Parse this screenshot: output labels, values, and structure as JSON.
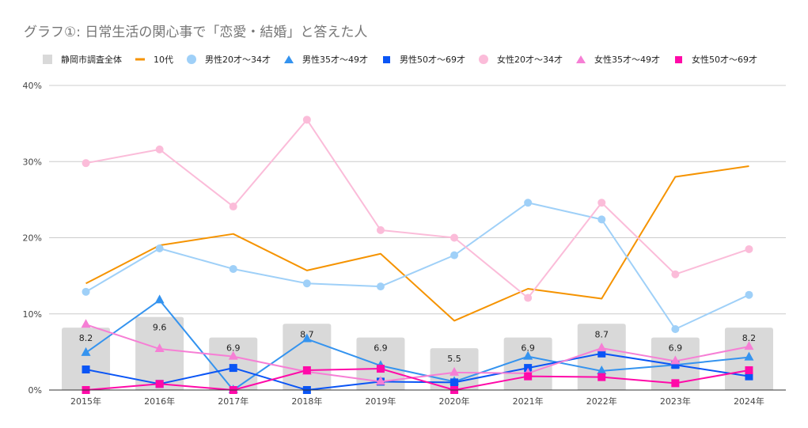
{
  "chart_data": {
    "type": "bar+line",
    "title": "グラフ①: 日常生活の関心事で「恋愛・結婚」と答えた人",
    "xlabel": "",
    "ylabel": "",
    "ylim": [
      0,
      40
    ],
    "yticks": [
      0,
      10,
      20,
      30,
      40
    ],
    "ytick_labels": [
      "0%",
      "10%",
      "20%",
      "30%",
      "40%"
    ],
    "grid": true,
    "legend_position": "top",
    "categories": [
      "2015年",
      "2016年",
      "2017年",
      "2018年",
      "2019年",
      "2020年",
      "2021年",
      "2022年",
      "2023年",
      "2024年"
    ],
    "bar_series": {
      "name": "静岡市調査全体",
      "color": "#d9d9d9",
      "values": [
        8.2,
        9.6,
        6.9,
        8.7,
        6.9,
        5.5,
        6.9,
        8.7,
        6.9,
        8.2
      ],
      "labels": [
        "8.2",
        "9.6",
        "6.9",
        "8.7",
        "6.9",
        "5.5",
        "6.9",
        "8.7",
        "6.9",
        "8.2"
      ]
    },
    "series": [
      {
        "name": "10代",
        "color": "#f59300",
        "marker": "none",
        "values": [
          14.0,
          19.0,
          20.5,
          15.7,
          17.9,
          9.1,
          13.3,
          12.0,
          28.0,
          29.4
        ]
      },
      {
        "name": "男性20才～34才",
        "color": "#9fd0f8",
        "marker": "circle",
        "values": [
          12.9,
          18.6,
          15.9,
          14.0,
          13.6,
          17.7,
          24.6,
          22.4,
          8.0,
          12.5
        ]
      },
      {
        "name": "男性35才～49才",
        "color": "#3493ef",
        "marker": "triangle",
        "values": [
          4.9,
          11.8,
          0.0,
          6.7,
          3.2,
          1.1,
          4.4,
          2.5,
          3.3,
          4.3
        ]
      },
      {
        "name": "男性50才～69才",
        "color": "#0a55f5",
        "marker": "square",
        "values": [
          2.7,
          0.8,
          2.9,
          0.0,
          1.1,
          1.0,
          2.9,
          4.8,
          3.3,
          1.8
        ]
      },
      {
        "name": "女性20才～34才",
        "color": "#fbbcd9",
        "marker": "circle",
        "values": [
          29.8,
          31.6,
          24.1,
          35.5,
          21.0,
          20.0,
          12.1,
          24.6,
          15.2,
          18.5
        ]
      },
      {
        "name": "女性35才～49才",
        "color": "#f67fd5",
        "marker": "triangle",
        "values": [
          8.6,
          5.4,
          4.4,
          2.4,
          1.1,
          2.3,
          2.2,
          5.5,
          3.8,
          5.7
        ]
      },
      {
        "name": "女性50才～69才",
        "color": "#ff0aa8",
        "marker": "square",
        "values": [
          0.0,
          0.8,
          0.0,
          2.6,
          2.8,
          0.0,
          1.8,
          1.7,
          0.9,
          2.6
        ]
      }
    ]
  }
}
